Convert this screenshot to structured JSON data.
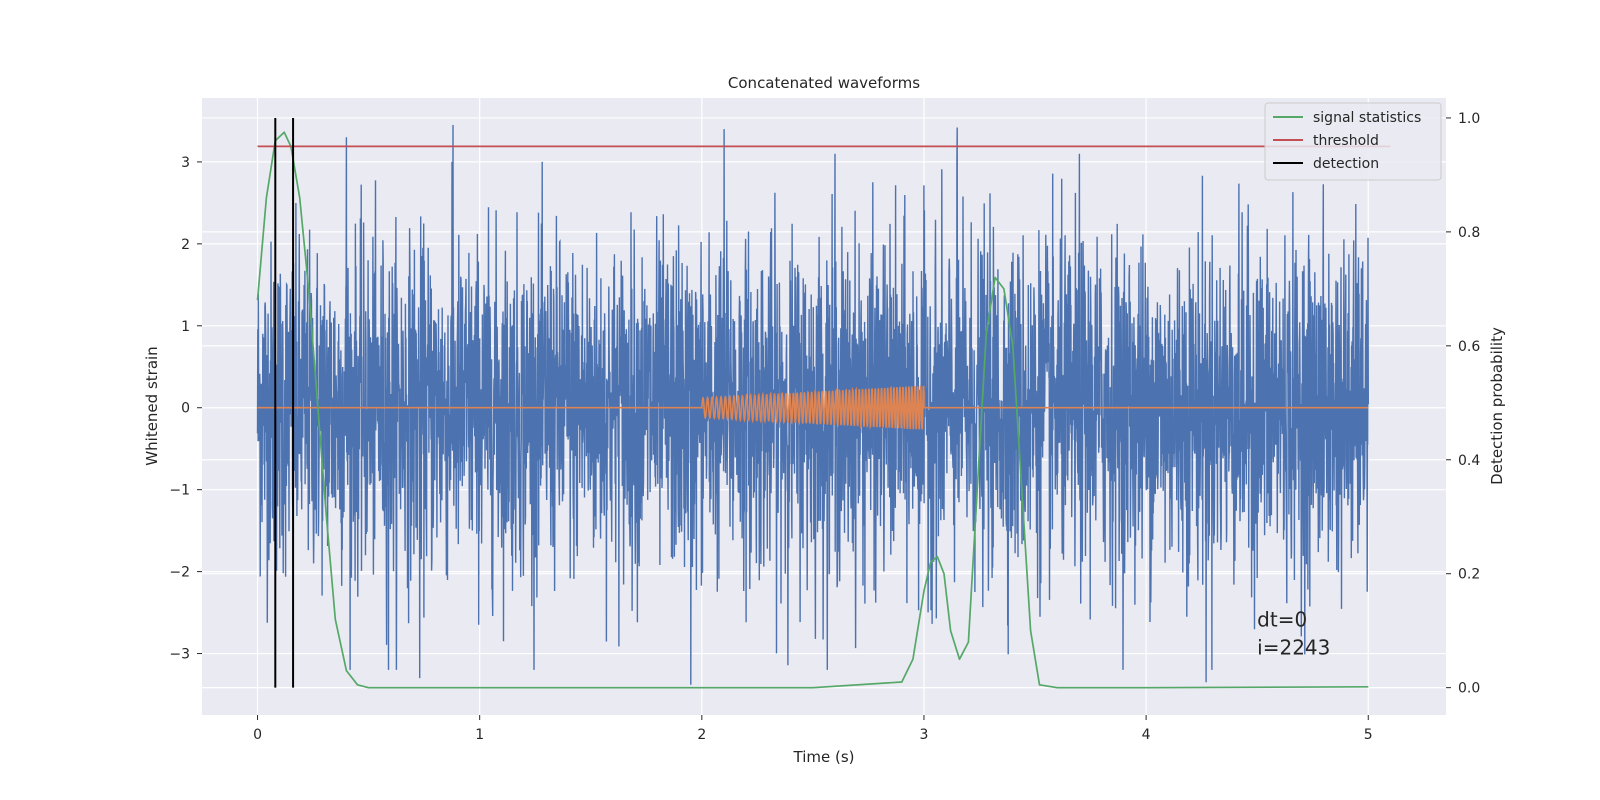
{
  "chart_data": {
    "type": "line",
    "title": "Concatenated waveforms",
    "xlabel": "Time (s)",
    "ylabel": "Whitened strain",
    "ylabel_right": "Detection probability",
    "xlim": [
      -0.25,
      5.35
    ],
    "ylim": [
      -3.75,
      3.78
    ],
    "ylim_right": [
      -0.048,
      1.035
    ],
    "x_ticks": [
      0,
      1,
      2,
      3,
      4,
      5
    ],
    "x_tick_labels": [
      "0",
      "1",
      "2",
      "3",
      "4",
      "5"
    ],
    "y_ticks": [
      -3,
      -2,
      -1,
      0,
      1,
      2,
      3
    ],
    "y_tick_labels": [
      "−3",
      "−2",
      "−1",
      "0",
      "1",
      "2",
      "3"
    ],
    "y_right_ticks": [
      0.0,
      0.2,
      0.4,
      0.6,
      0.8,
      1.0
    ],
    "y_right_tick_labels": [
      "0.0",
      "0.2",
      "0.4",
      "0.6",
      "0.8",
      "1.0"
    ],
    "grid": true,
    "legend_position": "top-right",
    "series": [
      {
        "name": "",
        "axis": "left",
        "color": "#4c72b0",
        "kind": "noise",
        "x_range": [
          0,
          5
        ],
        "amplitude_sigma": 1.0,
        "peaks": [
          {
            "x": 0.88,
            "y": 3.45
          },
          {
            "x": 0.4,
            "y": 3.3
          },
          {
            "x": 2.1,
            "y": 3.4
          },
          {
            "x": 3.15,
            "y": 3.42
          },
          {
            "x": 2.6,
            "y": 3.1
          },
          {
            "x": 3.7,
            "y": 3.1
          },
          {
            "x": 1.95,
            "y": -3.38
          },
          {
            "x": 4.27,
            "y": -3.35
          },
          {
            "x": 0.73,
            "y": -3.3
          },
          {
            "x": 0.59,
            "y": -3.2
          }
        ]
      },
      {
        "name": "",
        "axis": "left",
        "color": "#dd8452",
        "kind": "chirp",
        "baseline": 0,
        "x_range": [
          0,
          5
        ],
        "chirp_range": [
          2.0,
          3.0
        ],
        "amplitude_start": 0.12,
        "amplitude_end": 0.27,
        "cycles": 48
      },
      {
        "name": "signal statistics",
        "axis": "right",
        "color": "#55a868",
        "x": [
          0.0,
          0.04,
          0.08,
          0.12,
          0.15,
          0.19,
          0.23,
          0.27,
          0.31,
          0.35,
          0.4,
          0.45,
          0.5,
          0.6,
          1.0,
          2.0,
          2.5,
          2.9,
          2.95,
          3.0,
          3.03,
          3.06,
          3.09,
          3.12,
          3.16,
          3.2,
          3.24,
          3.28,
          3.32,
          3.36,
          3.4,
          3.44,
          3.48,
          3.52,
          3.6,
          4.0,
          5.0
        ],
        "y": [
          0.68,
          0.86,
          0.96,
          0.975,
          0.95,
          0.86,
          0.7,
          0.5,
          0.3,
          0.12,
          0.03,
          0.005,
          0.0,
          0.0,
          0.0,
          0.0,
          0.0,
          0.01,
          0.05,
          0.17,
          0.22,
          0.23,
          0.2,
          0.1,
          0.05,
          0.08,
          0.35,
          0.62,
          0.72,
          0.7,
          0.6,
          0.35,
          0.1,
          0.005,
          0.0,
          0.0,
          0.0015
        ]
      },
      {
        "name": "threshold",
        "axis": "right",
        "color": "#c44e52",
        "x": [
          0,
          5.1
        ],
        "y": [
          0.95,
          0.95
        ]
      },
      {
        "name": "detection",
        "axis": "right",
        "color": "#000000",
        "kind": "vlines",
        "x": [
          0.08,
          0.16
        ],
        "y_range": [
          0.0,
          1.0
        ]
      }
    ],
    "annotation": {
      "lines": [
        "dt=0",
        "i=2243"
      ],
      "x": 4.5,
      "y": 0.09
    },
    "right_axis_gridlines_y": [
      0.6,
      0.4
    ]
  }
}
